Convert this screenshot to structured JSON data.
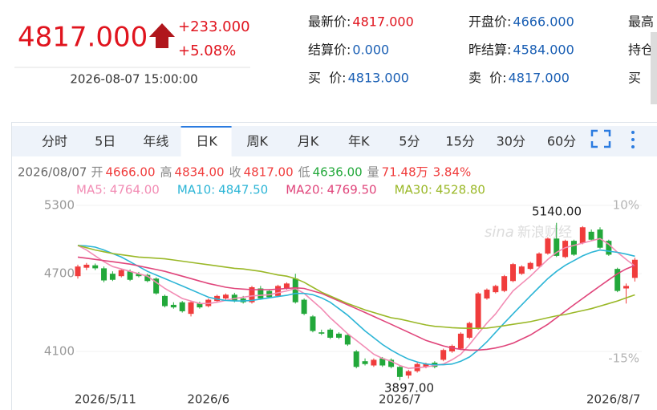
{
  "quote": {
    "price": "4817.000",
    "change": "+233.000",
    "percent": "+5.08%",
    "time": "2026-08-07 15:00:00"
  },
  "fields": [
    [
      {
        "label": "最新价:",
        "value": "4817.000",
        "color": "#e0141e"
      },
      {
        "label": "开盘价:",
        "value": "4666.000",
        "color": "#1a5fb4"
      },
      {
        "label": "最高"
      }
    ],
    [
      {
        "label": "结算价:",
        "value": "0.000",
        "color": "#1a5fb4"
      },
      {
        "label": "昨结算:",
        "value": "4584.000",
        "color": "#1a5fb4"
      },
      {
        "label": "持仓"
      }
    ],
    [
      {
        "label": "买  价:",
        "value": "4813.000",
        "color": "#1a5fb4"
      },
      {
        "label": "卖  价:",
        "value": "4817.000",
        "color": "#1a5fb4"
      },
      {
        "label": "买"
      }
    ]
  ],
  "tabs": [
    "分时",
    "5日",
    "年线",
    "日K",
    "周K",
    "月K",
    "年K",
    "5分",
    "15分",
    "30分",
    "60分"
  ],
  "active_tab": 3,
  "info": {
    "date": "2026/08/07",
    "items": [
      {
        "label": "开",
        "value": "4666.00",
        "color": "#f03c3c"
      },
      {
        "label": "高",
        "value": "4834.00",
        "color": "#f03c3c"
      },
      {
        "label": "收",
        "value": "4817.00",
        "color": "#f03c3c"
      },
      {
        "label": "低",
        "value": "4636.00",
        "color": "#22a83a"
      },
      {
        "label": "量",
        "value": "71.48万",
        "color": "#f03c3c"
      },
      {
        "value": "3.84%",
        "color": "#f03c3c"
      }
    ]
  },
  "kline": {
    "type": "candlestick",
    "scale": "log",
    "ylim": [
      3810,
      5360
    ],
    "yticks": [
      5300,
      4700,
      4100
    ],
    "right_labels": [
      "10%",
      "-15%"
    ],
    "grid": true,
    "up_color": "#f03c3c",
    "down_color": "#22a83a",
    "categories": [
      "2026/5/11",
      null,
      null,
      null,
      null,
      null,
      null,
      null,
      null,
      null,
      null,
      null,
      null,
      null,
      null,
      "2026/6",
      null,
      null,
      null,
      null,
      null,
      null,
      null,
      null,
      null,
      null,
      null,
      null,
      null,
      null,
      null,
      null,
      null,
      null,
      null,
      null,
      null,
      "2026/7",
      null,
      null,
      null,
      null,
      null,
      null,
      null,
      null,
      null,
      null,
      null,
      null,
      null,
      null,
      null,
      null,
      null,
      null,
      null,
      null,
      null,
      null,
      null,
      null,
      null,
      null,
      "2026/8/7"
    ],
    "candles": [
      [
        4680,
        4775,
        4660,
        4760
      ],
      [
        4750,
        4790,
        4730,
        4775
      ],
      [
        4770,
        4785,
        4730,
        4745
      ],
      [
        4745,
        4760,
        4630,
        4645
      ],
      [
        4700,
        4720,
        4640,
        4650
      ],
      [
        4680,
        4740,
        4670,
        4730
      ],
      [
        4720,
        4735,
        4640,
        4650
      ],
      [
        4700,
        4715,
        4670,
        4680
      ],
      [
        4690,
        4700,
        4630,
        4640
      ],
      [
        4660,
        4670,
        4530,
        4540
      ],
      [
        4520,
        4530,
        4430,
        4440
      ],
      [
        4450,
        4470,
        4420,
        4430
      ],
      [
        4470,
        4480,
        4390,
        4400
      ],
      [
        4380,
        4480,
        4360,
        4470
      ],
      [
        4460,
        4475,
        4420,
        4430
      ],
      [
        4440,
        4500,
        4430,
        4490
      ],
      [
        4480,
        4530,
        4470,
        4520
      ],
      [
        4500,
        4540,
        4490,
        4530
      ],
      [
        4530,
        4545,
        4470,
        4480
      ],
      [
        4500,
        4520,
        4460,
        4470
      ],
      [
        4470,
        4600,
        4460,
        4590
      ],
      [
        4580,
        4600,
        4490,
        4500
      ],
      [
        4560,
        4570,
        4500,
        4510
      ],
      [
        4520,
        4610,
        4510,
        4600
      ],
      [
        4580,
        4630,
        4570,
        4620
      ],
      [
        4660,
        4700,
        4460,
        4470
      ],
      [
        4490,
        4500,
        4370,
        4380
      ],
      [
        4360,
        4370,
        4240,
        4250
      ],
      [
        4240,
        4260,
        4220,
        4230
      ],
      [
        4260,
        4270,
        4190,
        4200
      ],
      [
        4230,
        4240,
        4190,
        4200
      ],
      [
        4220,
        4230,
        4140,
        4150
      ],
      [
        4100,
        4110,
        3980,
        3990
      ],
      [
        4030,
        4050,
        4000,
        4010
      ],
      [
        4000,
        4050,
        3990,
        4040
      ],
      [
        4050,
        4060,
        3990,
        4000
      ],
      [
        4040,
        4050,
        3980,
        3990
      ],
      [
        3990,
        4000,
        3897,
        3920
      ],
      [
        3930,
        3970,
        3910,
        3960
      ],
      [
        3960,
        4020,
        3950,
        4010
      ],
      [
        3990,
        4020,
        3980,
        4010
      ],
      [
        4020,
        4030,
        3980,
        3990
      ],
      [
        4040,
        4120,
        4030,
        4110
      ],
      [
        4100,
        4150,
        4090,
        4140
      ],
      [
        4120,
        4240,
        4110,
        4230
      ],
      [
        4200,
        4320,
        4190,
        4310
      ],
      [
        4270,
        4550,
        4260,
        4540
      ],
      [
        4500,
        4580,
        4490,
        4570
      ],
      [
        4550,
        4610,
        4540,
        4600
      ],
      [
        4560,
        4690,
        4550,
        4680
      ],
      [
        4640,
        4790,
        4630,
        4780
      ],
      [
        4700,
        4770,
        4690,
        4760
      ],
      [
        4740,
        4800,
        4730,
        4790
      ],
      [
        4760,
        4880,
        4750,
        4870
      ],
      [
        4870,
        5010,
        4860,
        5000
      ],
      [
        5000,
        5140,
        4840,
        4850
      ],
      [
        4840,
        4990,
        4830,
        4980
      ],
      [
        4980,
        4990,
        4850,
        4860
      ],
      [
        4960,
        5110,
        4950,
        5100
      ],
      [
        5060,
        5080,
        4980,
        4990
      ],
      [
        5080,
        5100,
        4910,
        4920
      ],
      [
        4980,
        4990,
        4850,
        4860
      ],
      [
        4740,
        4750,
        4550,
        4560
      ],
      [
        4580,
        4620,
        4460,
        4600
      ],
      [
        4666,
        4834,
        4636,
        4817
      ]
    ],
    "ma": [
      {
        "name": "MA5:",
        "value": "4764.00",
        "color": "#f28cb4",
        "values": [
          4940,
          4900,
          4850,
          4800,
          4760,
          4740,
          4720,
          4700,
          4680,
          4630,
          4580,
          4540,
          4500,
          4480,
          4460,
          4460,
          4470,
          4485,
          4500,
          4510,
          4520,
          4525,
          4530,
          4545,
          4560,
          4580,
          4540,
          4480,
          4420,
          4350,
          4290,
          4230,
          4180,
          4130,
          4080,
          4050,
          4030,
          4000,
          3980,
          3985,
          3990,
          4000,
          4010,
          4040,
          4080,
          4150,
          4230,
          4310,
          4380,
          4470,
          4560,
          4620,
          4680,
          4750,
          4820,
          4880,
          4920,
          4940,
          4960,
          4980,
          5000,
          4950,
          4880,
          4820,
          4764
        ]
      },
      {
        "name": "MA10:",
        "value": "4847.50",
        "color": "#2cb5d6",
        "values": [
          4940,
          4935,
          4925,
          4900,
          4870,
          4840,
          4800,
          4760,
          4720,
          4690,
          4660,
          4630,
          4600,
          4570,
          4540,
          4510,
          4495,
          4485,
          4480,
          4480,
          4485,
          4495,
          4505,
          4515,
          4525,
          4540,
          4540,
          4530,
          4505,
          4470,
          4420,
          4370,
          4310,
          4250,
          4200,
          4150,
          4110,
          4075,
          4045,
          4025,
          4010,
          4005,
          4005,
          4010,
          4030,
          4060,
          4110,
          4170,
          4240,
          4310,
          4380,
          4450,
          4520,
          4590,
          4660,
          4720,
          4770,
          4810,
          4850,
          4880,
          4900,
          4890,
          4880,
          4865,
          4847.5
        ]
      },
      {
        "name": "MA20:",
        "value": "4769.50",
        "color": "#e0457b",
        "values": [
          4840,
          4830,
          4820,
          4810,
          4800,
          4790,
          4780,
          4765,
          4750,
          4735,
          4720,
          4700,
          4680,
          4660,
          4640,
          4620,
          4605,
          4590,
          4580,
          4575,
          4570,
          4570,
          4570,
          4575,
          4580,
          4585,
          4580,
          4560,
          4540,
          4510,
          4480,
          4450,
          4420,
          4390,
          4360,
          4330,
          4300,
          4270,
          4240,
          4210,
          4180,
          4160,
          4140,
          4125,
          4115,
          4110,
          4110,
          4115,
          4125,
          4140,
          4160,
          4190,
          4220,
          4260,
          4300,
          4350,
          4400,
          4450,
          4500,
          4550,
          4600,
          4650,
          4700,
          4740,
          4769.5
        ]
      },
      {
        "name": "MA30:",
        "value": "4528.80",
        "color": "#9ab827",
        "values": [
          4940,
          4920,
          4900,
          4885,
          4870,
          4860,
          4850,
          4840,
          4835,
          4830,
          4825,
          4815,
          4805,
          4795,
          4785,
          4775,
          4765,
          4755,
          4745,
          4740,
          4730,
          4720,
          4705,
          4690,
          4680,
          4660,
          4630,
          4590,
          4550,
          4520,
          4490,
          4460,
          4435,
          4410,
          4390,
          4370,
          4350,
          4340,
          4325,
          4310,
          4295,
          4285,
          4280,
          4275,
          4272,
          4270,
          4270,
          4272,
          4280,
          4290,
          4300,
          4310,
          4320,
          4335,
          4350,
          4365,
          4375,
          4390,
          4405,
          4420,
          4440,
          4460,
          4480,
          4505,
          4528.8
        ]
      }
    ],
    "annotations": [
      "5140.00",
      "3897.00"
    ],
    "watermark": [
      "sina",
      "新浪财经"
    ]
  }
}
